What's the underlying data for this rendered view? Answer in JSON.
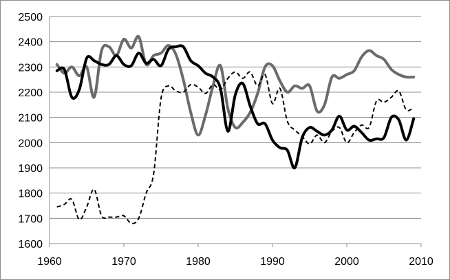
{
  "chart_data": {
    "type": "line",
    "title": "",
    "xlabel": "",
    "ylabel": "",
    "xlim": [
      1960,
      2010
    ],
    "ylim": [
      1600,
      2500
    ],
    "x_ticks": [
      1960,
      1970,
      1980,
      1990,
      2000,
      2010
    ],
    "y_ticks": [
      1600,
      1700,
      1800,
      1900,
      2000,
      2100,
      2200,
      2300,
      2400,
      2500
    ],
    "x_tick_labels": [
      "1960",
      "1970",
      "1980",
      "1990",
      "2000",
      "2010"
    ],
    "y_tick_labels": [
      "1600",
      "1700",
      "1800",
      "1900",
      "2000",
      "2100",
      "2200",
      "2300",
      "2400",
      "2500"
    ],
    "grid": "horizontal",
    "legend": "none",
    "series": [
      {
        "color": "#000000",
        "style": "solid-thick",
        "x": [
          1961,
          1962,
          1963,
          1964,
          1965,
          1966,
          1967,
          1968,
          1969,
          1970,
          1971,
          1972,
          1973,
          1974,
          1975,
          1976,
          1977,
          1978,
          1979,
          1980,
          1981,
          1982,
          1983,
          1984,
          1985,
          1986,
          1987,
          1988,
          1989,
          1990,
          1991,
          1992,
          1993,
          1994,
          1995,
          1996,
          1997,
          1998,
          1999,
          2000,
          2001,
          2002,
          2003,
          2004,
          2005,
          2006,
          2007,
          2008,
          2009
        ],
        "y": [
          2285,
          2290,
          2180,
          2210,
          2335,
          2325,
          2310,
          2310,
          2345,
          2310,
          2305,
          2355,
          2315,
          2330,
          2305,
          2370,
          2380,
          2380,
          2325,
          2305,
          2275,
          2260,
          2215,
          2045,
          2190,
          2235,
          2145,
          2075,
          2075,
          2010,
          1980,
          1970,
          1900,
          2020,
          2060,
          2045,
          2030,
          2050,
          2105,
          2050,
          2065,
          2040,
          2010,
          2015,
          2020,
          2100,
          2090,
          2010,
          2095
        ]
      },
      {
        "color": "#6b6b6b",
        "style": "solid-thick",
        "x": [
          1961,
          1962,
          1963,
          1964,
          1965,
          1966,
          1967,
          1968,
          1969,
          1970,
          1971,
          1972,
          1973,
          1974,
          1975,
          1976,
          1977,
          1978,
          1979,
          1980,
          1981,
          1982,
          1983,
          1984,
          1985,
          1986,
          1987,
          1988,
          1989,
          1990,
          1991,
          1992,
          1993,
          1994,
          1995,
          1996,
          1997,
          1998,
          1999,
          2000,
          2001,
          2002,
          2003,
          2004,
          2005,
          2006,
          2007,
          2008,
          2009
        ],
        "y": [
          2310,
          2275,
          2300,
          2265,
          2300,
          2180,
          2365,
          2380,
          2345,
          2410,
          2375,
          2420,
          2310,
          2345,
          2355,
          2385,
          2350,
          2250,
          2120,
          2030,
          2110,
          2225,
          2305,
          2135,
          2060,
          2080,
          2120,
          2195,
          2300,
          2305,
          2245,
          2200,
          2225,
          2215,
          2225,
          2125,
          2150,
          2260,
          2255,
          2270,
          2285,
          2340,
          2365,
          2345,
          2330,
          2290,
          2270,
          2260,
          2260
        ]
      },
      {
        "color": "#000000",
        "style": "dashed",
        "x": [
          1961,
          1962,
          1963,
          1964,
          1965,
          1966,
          1967,
          1968,
          1969,
          1970,
          1971,
          1972,
          1973,
          1974,
          1975,
          1976,
          1977,
          1978,
          1979,
          1980,
          1981,
          1982,
          1983,
          1984,
          1985,
          1986,
          1987,
          1988,
          1989,
          1990,
          1991,
          1992,
          1993,
          1994,
          1995,
          1996,
          1997,
          1998,
          1999,
          2000,
          2001,
          2002,
          2003,
          2004,
          2005,
          2006,
          2007,
          2008,
          2009
        ],
        "y": [
          1745,
          1755,
          1775,
          1695,
          1745,
          1815,
          1710,
          1705,
          1705,
          1710,
          1680,
          1700,
          1800,
          1875,
          2175,
          2225,
          2205,
          2200,
          2230,
          2220,
          2195,
          2230,
          2210,
          2255,
          2280,
          2255,
          2280,
          2225,
          2270,
          2155,
          2215,
          2085,
          2050,
          2025,
          1995,
          2030,
          2000,
          2045,
          2060,
          2000,
          2040,
          2070,
          2060,
          2165,
          2160,
          2180,
          2205,
          2130,
          2140
        ]
      }
    ]
  }
}
